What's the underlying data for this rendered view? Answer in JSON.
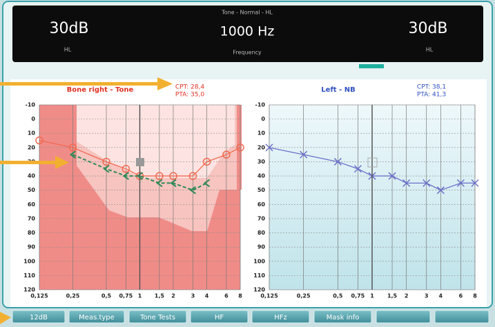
{
  "header": {
    "caption": "Tone - Normal - HL",
    "left_level": "30dB",
    "left_unit": "HL",
    "frequency": "1000 Hz",
    "frequency_label": "Frequency",
    "right_level": "30dB",
    "right_unit": "HL"
  },
  "chart_data": [
    {
      "type": "line",
      "title": "Bone right - Tone",
      "cpt": "CPT: 28,4",
      "pta": "PTA: 35,0",
      "title_color": "#e03020",
      "x_log": true,
      "xlim": [
        0.125,
        8
      ],
      "xticks": [
        {
          "value": 0.125,
          "label": "0,125"
        },
        {
          "value": 0.25,
          "label": "0,25"
        },
        {
          "value": 0.5,
          "label": "0,5"
        },
        {
          "value": 0.75,
          "label": "0,75"
        },
        1,
        {
          "value": 1.5,
          "label": "1,5"
        },
        2,
        3,
        4,
        6,
        8
      ],
      "ylim": [
        -10,
        120
      ],
      "y_inverted": true,
      "yticks": [
        -10,
        0,
        10,
        20,
        30,
        40,
        50,
        60,
        70,
        80,
        90,
        100,
        110,
        120
      ],
      "grid": true,
      "series": [
        {
          "color": "#f06a50",
          "marker": "circle",
          "dashed": false,
          "x": [
            0.125,
            0.25,
            0.5,
            0.75,
            1,
            1.5,
            2,
            3,
            4,
            6,
            8
          ],
          "values": [
            15,
            20,
            30,
            35,
            40,
            40,
            40,
            40,
            30,
            25,
            20
          ]
        },
        {
          "color": "#2e8a58",
          "marker": "bracket",
          "dashed": true,
          "x": [
            0.25,
            0.5,
            0.75,
            1,
            1.5,
            2,
            3,
            4
          ],
          "values": [
            25,
            35,
            40,
            40,
            45,
            45,
            50,
            45
          ]
        }
      ]
    },
    {
      "type": "line",
      "title": "Left - NB",
      "cpt": "CPT: 38,1",
      "pta": "PTA: 41,3",
      "title_color": "#3050c0",
      "x_log": true,
      "xlim": [
        0.125,
        8
      ],
      "xticks": [
        {
          "value": 0.125,
          "label": "0,125"
        },
        {
          "value": 0.25,
          "label": "0,25"
        },
        {
          "value": 0.5,
          "label": "0,5"
        },
        {
          "value": 0.75,
          "label": "0,75"
        },
        1,
        {
          "value": 1.5,
          "label": "1,5"
        },
        2,
        3,
        4,
        6,
        8
      ],
      "ylim": [
        -10,
        120
      ],
      "y_inverted": true,
      "yticks": [
        -10,
        0,
        10,
        20,
        30,
        40,
        50,
        60,
        70,
        80,
        90,
        100,
        110,
        120
      ],
      "grid": true,
      "series": [
        {
          "color": "#6a70c8",
          "marker": "x",
          "dashed": false,
          "x": [
            0.125,
            0.25,
            0.5,
            0.75,
            1,
            1.5,
            2,
            3,
            4,
            6,
            8
          ],
          "values": [
            20,
            25,
            30,
            35,
            40,
            40,
            45,
            45,
            50,
            45,
            45
          ]
        }
      ]
    }
  ],
  "softkeys": [
    "12dB",
    "Meas.type",
    "Tone Tests",
    "HF",
    "HFz",
    "Mask info"
  ]
}
